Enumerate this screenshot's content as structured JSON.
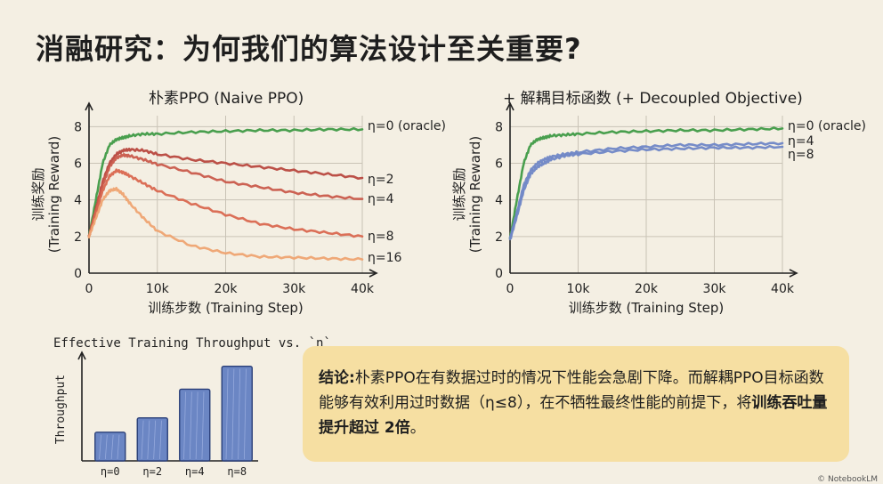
{
  "title": "消融研究：为何我们的算法设计至关重要?",
  "credit": "© NotebookLM",
  "colors": {
    "oracle": "#3f9a46",
    "eta2": "#b8473e",
    "eta4": "#c95a4b",
    "eta8": "#d9674f",
    "eta16": "#eea371",
    "decoupled": "#6f86c6",
    "bar": "#6b86c4",
    "panel": "#f6dfa2"
  },
  "conclusion": {
    "label": "结论:",
    "text1": "朴素PPO在有数据过时的情况下性能会急剧下降。而解耦PPO目标函数能够有效利用过时数据（η≤8），在不牺牲最终性能的前提下，将",
    "bold": "训练吞吐量提升超过 2倍",
    "end": "。"
  },
  "chart_data": [
    {
      "type": "line",
      "title": "朴素PPO (Naive PPO)",
      "xlabel": "训练步数 (Training Step)",
      "ylabel": [
        "训练奖励",
        "(Training Reward)"
      ],
      "xticks": [
        "0",
        "10k",
        "20k",
        "30k",
        "40k"
      ],
      "yticks": [
        "0",
        "2",
        "4",
        "6",
        "8"
      ],
      "xlim": [
        0,
        40000
      ],
      "ylim": [
        0,
        8.6
      ],
      "grid": true,
      "series": [
        {
          "name": "η=0 (oracle)",
          "color_key": "oracle",
          "x": [
            0,
            1000,
            2000,
            3000,
            4000,
            5000,
            6000,
            8000,
            10000,
            15000,
            20000,
            25000,
            30000,
            35000,
            40000
          ],
          "y": [
            2.0,
            4.0,
            6.0,
            7.0,
            7.3,
            7.4,
            7.5,
            7.6,
            7.6,
            7.7,
            7.75,
            7.8,
            7.8,
            7.85,
            7.85
          ]
        },
        {
          "name": "η=2",
          "color_key": "eta2",
          "x": [
            0,
            1000,
            2000,
            3000,
            4000,
            5000,
            6000,
            8000,
            10000,
            15000,
            20000,
            25000,
            30000,
            35000,
            40000
          ],
          "y": [
            2.0,
            3.5,
            5.0,
            6.0,
            6.5,
            6.7,
            6.75,
            6.7,
            6.5,
            6.2,
            6.0,
            5.8,
            5.6,
            5.4,
            5.2
          ]
        },
        {
          "name": "η=4",
          "color_key": "eta4",
          "x": [
            0,
            1000,
            2000,
            3000,
            4000,
            5000,
            6000,
            8000,
            10000,
            15000,
            20000,
            25000,
            30000,
            35000,
            40000
          ],
          "y": [
            2.0,
            3.4,
            4.8,
            5.8,
            6.3,
            6.45,
            6.4,
            6.2,
            5.95,
            5.5,
            5.0,
            4.7,
            4.4,
            4.2,
            4.05
          ]
        },
        {
          "name": "η=8",
          "color_key": "eta8",
          "x": [
            0,
            1000,
            2000,
            3000,
            4000,
            5000,
            6000,
            8000,
            10000,
            15000,
            20000,
            25000,
            30000,
            35000,
            40000
          ],
          "y": [
            2.0,
            3.3,
            4.5,
            5.3,
            5.6,
            5.5,
            5.3,
            4.9,
            4.5,
            3.8,
            3.2,
            2.7,
            2.4,
            2.2,
            2.0
          ]
        },
        {
          "name": "η=16",
          "color_key": "eta16",
          "x": [
            0,
            1000,
            2000,
            3000,
            4000,
            5000,
            6000,
            8000,
            10000,
            15000,
            20000,
            25000,
            30000,
            35000,
            40000
          ],
          "y": [
            2.0,
            3.0,
            4.0,
            4.5,
            4.6,
            4.3,
            3.8,
            3.0,
            2.3,
            1.5,
            1.1,
            0.9,
            0.85,
            0.8,
            0.75
          ]
        }
      ]
    },
    {
      "type": "line",
      "title": "+ 解耦目标函数 (+ Decoupled Objective)",
      "xlabel": "训练步数 (Training Step)",
      "ylabel": [
        "训练奖励",
        "(Training Reward)"
      ],
      "xticks": [
        "0",
        "10k",
        "20k",
        "30k",
        "40k"
      ],
      "yticks": [
        "0",
        "2",
        "4",
        "6",
        "8"
      ],
      "xlim": [
        0,
        40000
      ],
      "ylim": [
        0,
        8.6
      ],
      "grid": true,
      "series": [
        {
          "name": "η=0 (oracle)",
          "color_key": "oracle",
          "x": [
            0,
            1000,
            2000,
            3000,
            4000,
            5000,
            6000,
            8000,
            10000,
            15000,
            20000,
            25000,
            30000,
            35000,
            40000
          ],
          "y": [
            1.9,
            4.0,
            6.0,
            7.0,
            7.3,
            7.4,
            7.5,
            7.55,
            7.6,
            7.7,
            7.75,
            7.8,
            7.8,
            7.85,
            7.9
          ]
        },
        {
          "name": "η=4",
          "color_key": "decoupled",
          "x": [
            0,
            1000,
            2000,
            3000,
            4000,
            5000,
            6000,
            8000,
            10000,
            15000,
            20000,
            25000,
            30000,
            35000,
            40000
          ],
          "y": [
            1.9,
            3.3,
            4.8,
            5.6,
            6.0,
            6.2,
            6.35,
            6.5,
            6.6,
            6.8,
            6.9,
            7.0,
            7.0,
            7.05,
            7.1
          ]
        },
        {
          "name": "η=8",
          "color_key": "decoupled",
          "x": [
            0,
            1000,
            2000,
            3000,
            4000,
            5000,
            6000,
            8000,
            10000,
            15000,
            20000,
            25000,
            30000,
            35000,
            40000
          ],
          "y": [
            1.8,
            3.1,
            4.5,
            5.4,
            5.8,
            6.0,
            6.2,
            6.4,
            6.5,
            6.65,
            6.75,
            6.8,
            6.85,
            6.85,
            6.9
          ]
        }
      ]
    },
    {
      "type": "bar",
      "title": "Effective Training Throughput vs. `η`",
      "ylabel": "Throughput",
      "xlabel": "",
      "categories": [
        "η=0",
        "η=2",
        "η=4",
        "η=8"
      ],
      "values": [
        1.0,
        1.5,
        2.5,
        3.3
      ],
      "ylim": [
        0,
        3.6
      ]
    }
  ]
}
